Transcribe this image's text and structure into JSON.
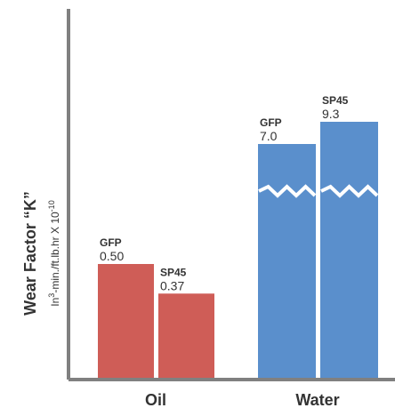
{
  "chart_data": {
    "type": "bar",
    "categories": [
      "Oil",
      "Water"
    ],
    "ylabel": "Wear Factor “K”",
    "yunits": {
      "prefix": "In",
      "exp1": "3",
      "middle": "-min./ft.lb.hr X 10",
      "exp2": "-10"
    },
    "axis_break_on": "Water",
    "bars": [
      {
        "category": "Oil",
        "name": "GFP",
        "value": 0.5,
        "value_label": "0.50",
        "color": "#CF5D57"
      },
      {
        "category": "Oil",
        "name": "SP45",
        "value": 0.37,
        "value_label": "0.37",
        "color": "#CF5D57"
      },
      {
        "category": "Water",
        "name": "GFP",
        "value": 7.0,
        "value_label": "7.0",
        "color": "#5A8FCC"
      },
      {
        "category": "Water",
        "name": "SP45",
        "value": 9.3,
        "value_label": "9.3",
        "color": "#5A8FCC"
      }
    ]
  }
}
